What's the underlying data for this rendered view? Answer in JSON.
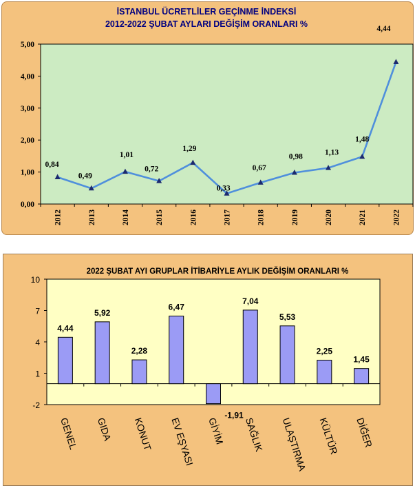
{
  "colors": {
    "panel_bg": "#f4c27e",
    "plot1_bg": "#ccebc2",
    "plot2_bg": "#ffffc4",
    "line": "#4f8fdc",
    "marker": "#1c2a6e",
    "bar_fill": "#9b9bf5",
    "bar_stroke": "#000000"
  },
  "chart_data": [
    {
      "type": "line",
      "title": "İSTANBUL ÜCRETLİLER GEÇİNME İNDEKSİ",
      "subtitle": "2012-2022 ŞUBAT AYLARI DEĞİŞİM ORANLARI %",
      "x": [
        "2012",
        "2013",
        "2014",
        "2015",
        "2016",
        "2017",
        "2018",
        "2019",
        "2020",
        "2021",
        "2022"
      ],
      "series": [
        {
          "values": [
            0.84,
            0.49,
            1.01,
            0.72,
            1.29,
            0.33,
            0.67,
            0.98,
            1.13,
            1.48,
            4.44
          ]
        }
      ],
      "data_labels": [
        "0,84",
        "0,49",
        "1,01",
        "0,72",
        "1,29",
        "0,33",
        "0,67",
        "0,98",
        "1,13",
        "1,48",
        "4,44"
      ],
      "yticks": [
        "0,00",
        "1,00",
        "2,00",
        "3,00",
        "4,00",
        "5,00"
      ],
      "ylim": [
        0,
        5
      ],
      "xlabel": "",
      "ylabel": "",
      "grid": false,
      "legend": "none"
    },
    {
      "type": "bar",
      "title": "2022 ŞUBAT  AYI  GRUPLAR İTİBARİYLE AYLIK DEĞİŞİM  ORANLARI  %",
      "categories": [
        "GENEL",
        "GIDA",
        "KONUT",
        "EV EŞYASI",
        "GİYİM",
        "SAĞLIK",
        "ULAŞTIRMA",
        "KÜLTÜR",
        "DİĞER"
      ],
      "values": [
        4.44,
        5.92,
        2.28,
        6.47,
        -1.91,
        7.04,
        5.53,
        2.25,
        1.45
      ],
      "data_labels": [
        "4,44",
        "5,92",
        "2,28",
        "6,47",
        "-1,91",
        "7,04",
        "5,53",
        "2,25",
        "1,45"
      ],
      "yticks": [
        "-2",
        "1",
        "4",
        "7",
        "10"
      ],
      "ylim": [
        -2,
        10
      ],
      "xlabel": "",
      "ylabel": "",
      "grid": false,
      "legend": "none"
    }
  ]
}
